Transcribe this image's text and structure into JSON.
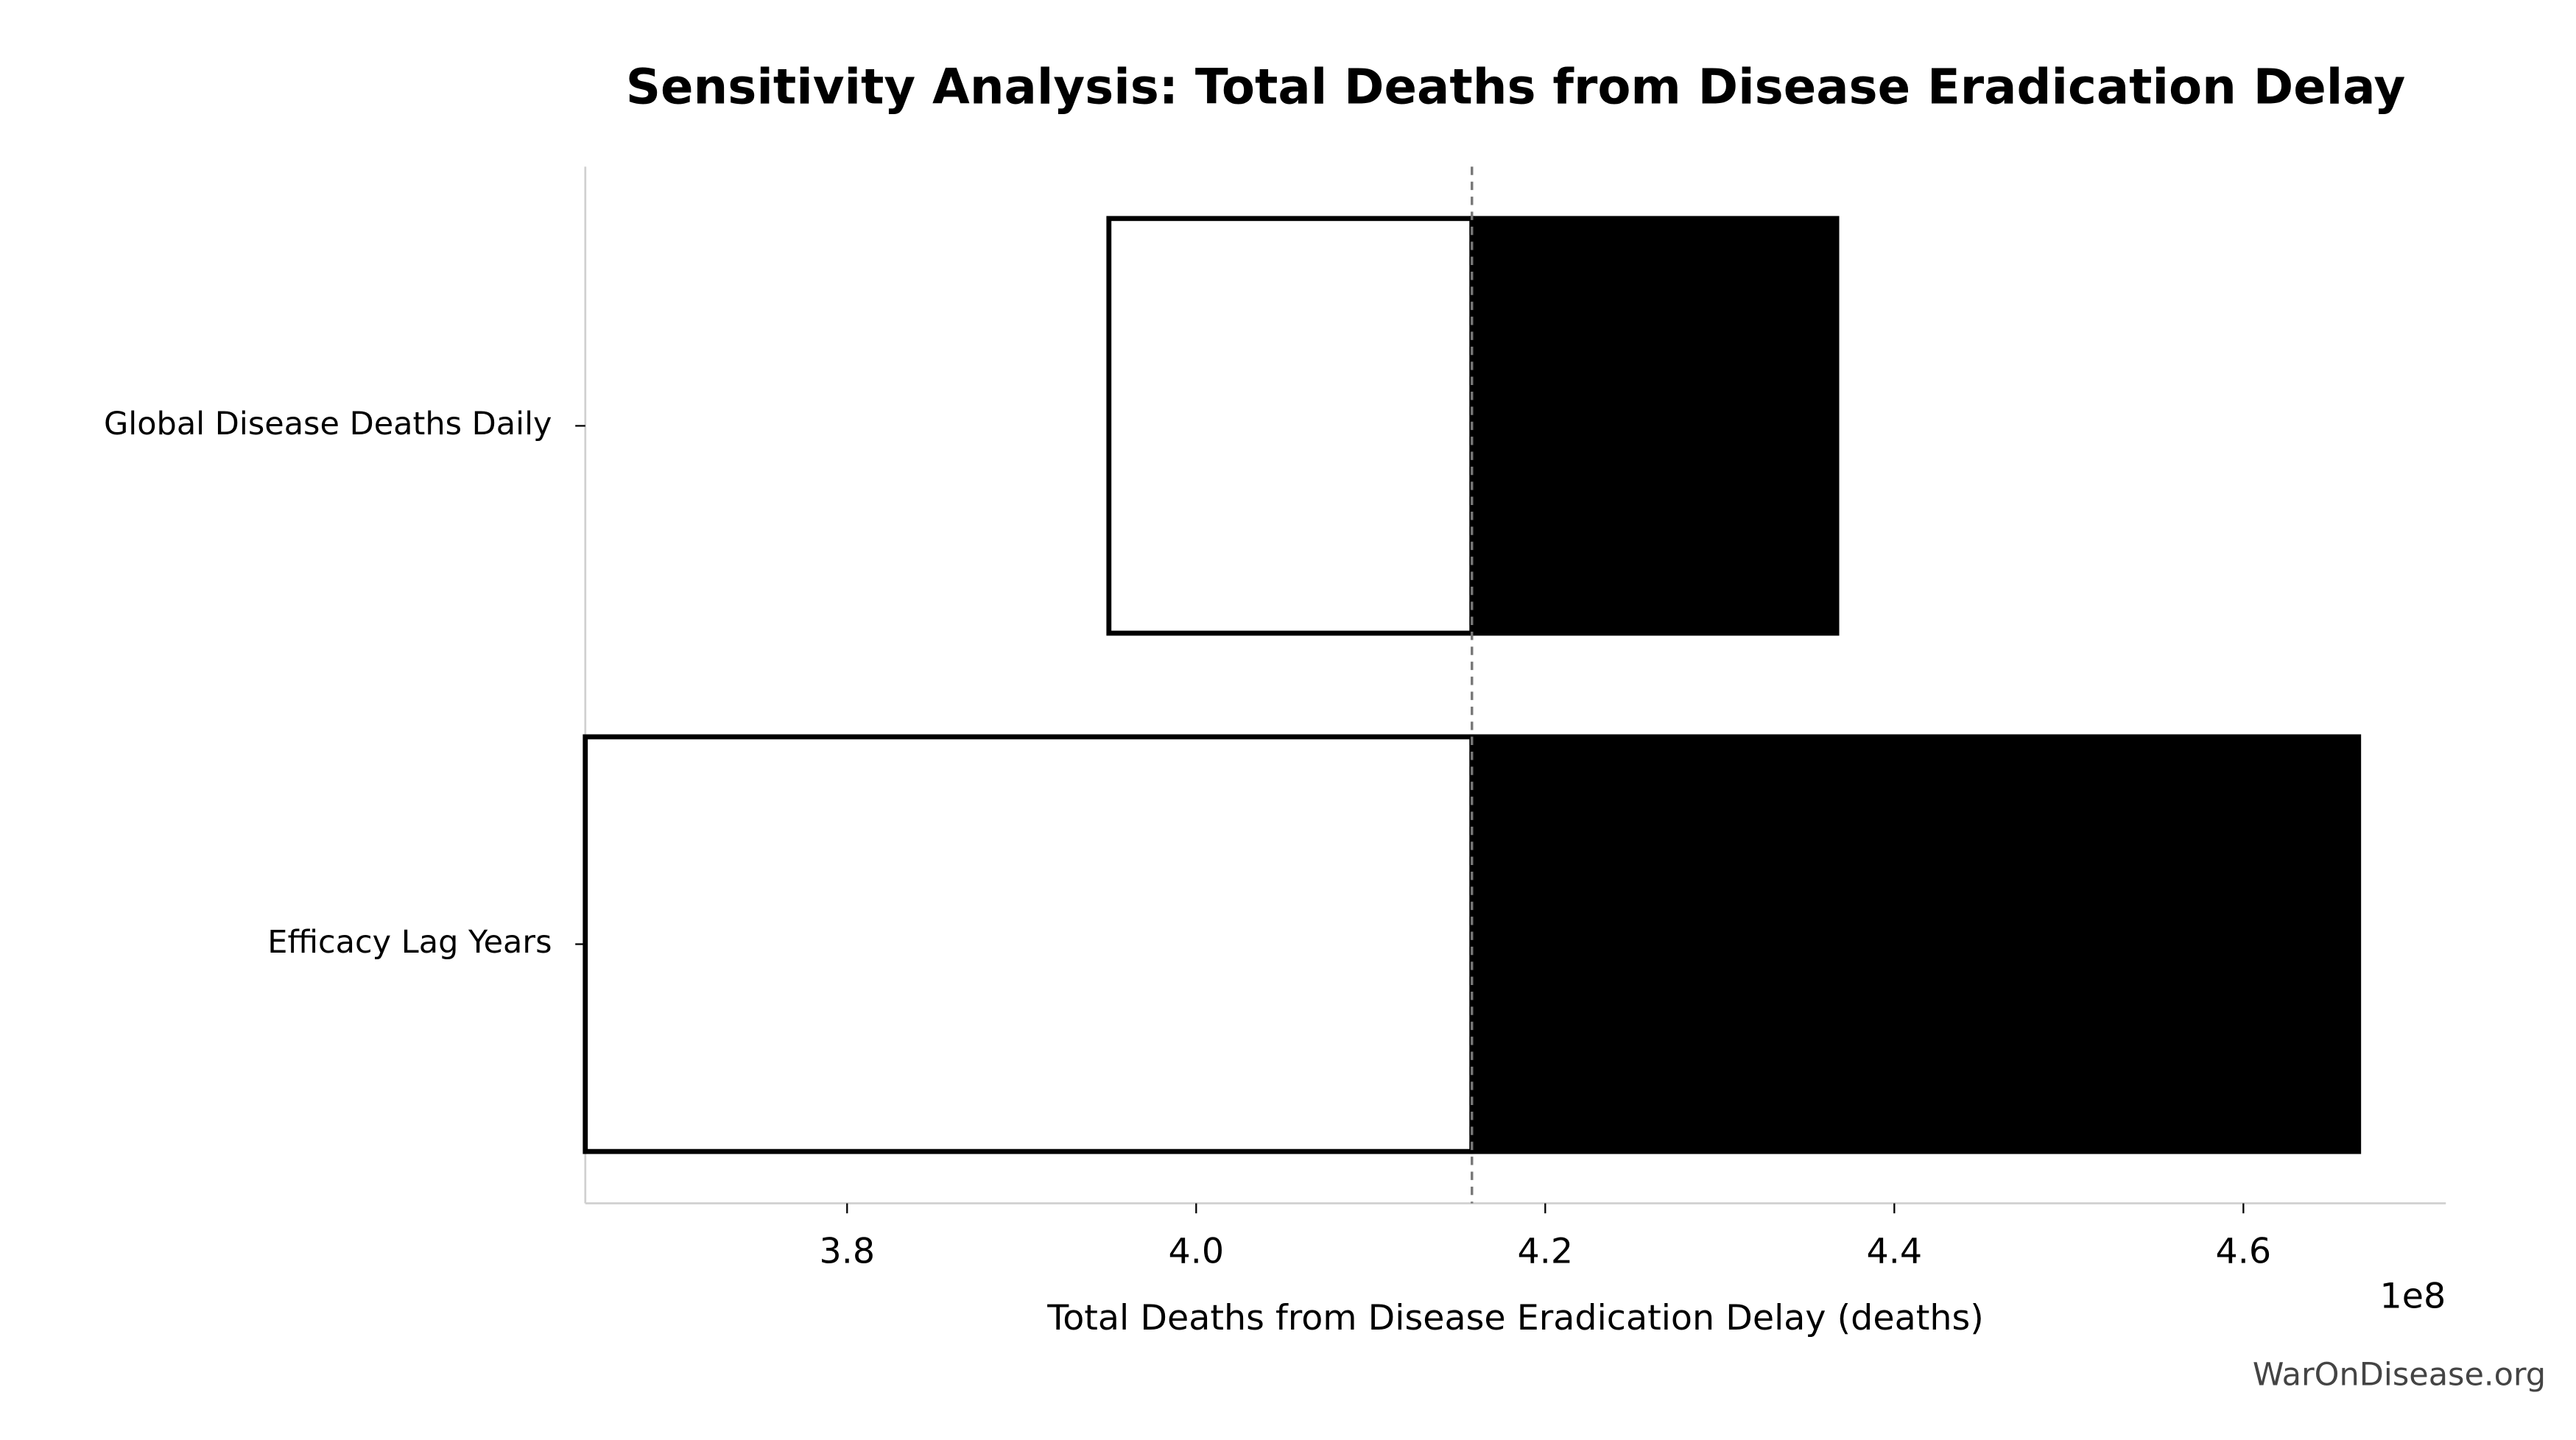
{
  "chart_data": {
    "type": "tornado",
    "title": "Sensitivity Analysis: Total Deaths from Disease Eradication Delay",
    "x_label": "Total Deaths from Disease Eradication Delay (deaths)",
    "x_offset_label": "1e8",
    "watermark": "WarOnDisease.org",
    "categories": [
      "Global Disease Deaths Daily",
      "Efficacy Lag Years"
    ],
    "baseline": 4.158,
    "series": [
      {
        "color": "#ffffff",
        "values": [
          3.95,
          3.65
        ]
      },
      {
        "color": "#000000",
        "values": [
          4.367,
          4.666
        ]
      }
    ],
    "xlim": [
      3.65,
      4.716
    ],
    "xticks": [
      3.8,
      {
        "value": 4,
        "label": "4.0"
      },
      4.2,
      4.4,
      4.6
    ]
  }
}
